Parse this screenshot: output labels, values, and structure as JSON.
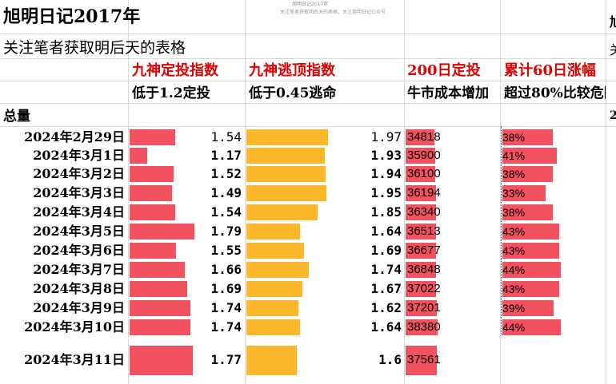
{
  "sheet": {
    "title": "旭明日记2017年",
    "subtitle": "关注笔者获取明后天的表格",
    "tiny_title": "旭明日记2017年",
    "tiny_sub": "关注笔者获取明后天的表格，关注旭明日记公众号",
    "edge_title": "旭",
    "edge_sub": "关",
    "edge_row": "2",
    "total_label": "总量"
  },
  "headers": {
    "col_a": {
      "title": "九神定投指数",
      "note": "低于1.2定投"
    },
    "col_b": {
      "title": "九神逃顶指数",
      "note": "低于0.45逃命"
    },
    "col_c": {
      "title": "200日定投",
      "note": "牛市成本增加"
    },
    "col_d": {
      "title": "累计60日涨幅",
      "note": "超过80%比较危险"
    }
  },
  "colors": {
    "red_bar": "#f25160",
    "orange_bar": "#fcb72a",
    "header_red": "#e00000"
  },
  "rows": [
    {
      "date": "2024年2月29日",
      "a": "1.54",
      "a_val": 1.54,
      "b": "1.97",
      "b_val": 1.97,
      "c": "34818",
      "c_val": 34818,
      "d": "38%",
      "d_val": 38
    },
    {
      "date": "2024年3月1日",
      "a": "1.17",
      "a_val": 1.17,
      "b": "1.93",
      "b_val": 1.93,
      "c": "35900",
      "c_val": 35900,
      "d": "41%",
      "d_val": 41
    },
    {
      "date": "2024年3月2日",
      "a": "1.52",
      "a_val": 1.52,
      "b": "1.94",
      "b_val": 1.94,
      "c": "36100",
      "c_val": 36100,
      "d": "38%",
      "d_val": 38
    },
    {
      "date": "2024年3月3日",
      "a": "1.49",
      "a_val": 1.49,
      "b": "1.95",
      "b_val": 1.95,
      "c": "36194",
      "c_val": 36194,
      "d": "33%",
      "d_val": 33
    },
    {
      "date": "2024年3月4日",
      "a": "1.54",
      "a_val": 1.54,
      "b": "1.85",
      "b_val": 1.85,
      "c": "36340",
      "c_val": 36340,
      "d": "38%",
      "d_val": 38
    },
    {
      "date": "2024年3月5日",
      "a": "1.79",
      "a_val": 1.79,
      "b": "1.64",
      "b_val": 1.64,
      "c": "36513",
      "c_val": 36513,
      "d": "43%",
      "d_val": 43
    },
    {
      "date": "2024年3月6日",
      "a": "1.55",
      "a_val": 1.55,
      "b": "1.69",
      "b_val": 1.69,
      "c": "36677",
      "c_val": 36677,
      "d": "43%",
      "d_val": 43
    },
    {
      "date": "2024年3月7日",
      "a": "1.66",
      "a_val": 1.66,
      "b": "1.74",
      "b_val": 1.74,
      "c": "36848",
      "c_val": 36848,
      "d": "44%",
      "d_val": 44
    },
    {
      "date": "2024年3月8日",
      "a": "1.69",
      "a_val": 1.69,
      "b": "1.67",
      "b_val": 1.67,
      "c": "37022",
      "c_val": 37022,
      "d": "43%",
      "d_val": 43
    },
    {
      "date": "2024年3月9日",
      "a": "1.74",
      "a_val": 1.74,
      "b": "1.62",
      "b_val": 1.62,
      "c": "37201",
      "c_val": 37201,
      "d": "39%",
      "d_val": 39
    },
    {
      "date": "2024年3月10日",
      "a": "1.74",
      "a_val": 1.74,
      "b": "1.64",
      "b_val": 1.64,
      "c": "38380",
      "c_val": 38380,
      "d": "44%",
      "d_val": 44
    },
    {
      "date": "2024年3月11日",
      "a": "1.77",
      "a_val": 1.77,
      "b": "1.6",
      "b_val": 1.6,
      "c": "37561",
      "c_val": 37561,
      "d": "",
      "d_val": null
    }
  ]
}
